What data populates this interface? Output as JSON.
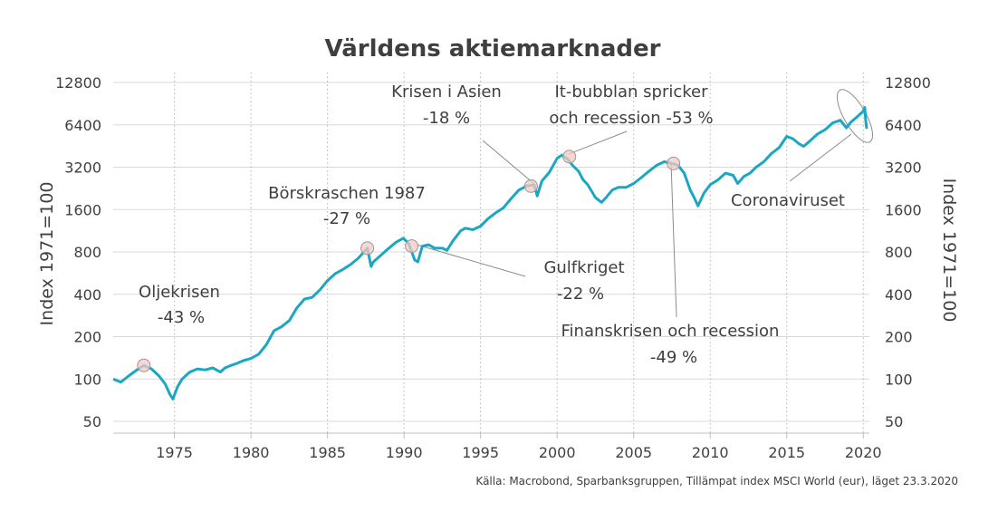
{
  "chart_data": {
    "type": "line",
    "title": "Världens aktiemarknader",
    "ylabel_left": "Index 1971=100",
    "ylabel_right": "Index 1971=100",
    "y_scale": "log2",
    "ylim": [
      40,
      12800
    ],
    "yticks": [
      50,
      100,
      200,
      400,
      800,
      1600,
      3200,
      6400,
      12800
    ],
    "xlim": [
      1971,
      2020.4
    ],
    "xticks": [
      1975,
      1980,
      1985,
      1990,
      1995,
      2000,
      2005,
      2010,
      2015,
      2020
    ],
    "grid": "horizontal solid, vertical dotted",
    "line_color": "#1aa7c3",
    "source": "Källa: Macrobond, Sparbanksgruppen, Tillämpat index MSCI World (eur), läget 23.3.2020",
    "series": [
      {
        "x": [
          1971.0,
          1971.5,
          1972.0,
          1972.5,
          1973.0,
          1973.5,
          1974.0,
          1974.4,
          1974.7,
          1974.9,
          1975.2,
          1975.5,
          1976.0,
          1976.5,
          1977.0,
          1977.5,
          1978.0,
          1978.3,
          1978.7,
          1979.0,
          1979.5,
          1980.0,
          1980.5,
          1981.0,
          1981.5,
          1982.0,
          1982.5,
          1983.0,
          1983.5,
          1984.0,
          1984.5,
          1985.0,
          1985.5,
          1986.0,
          1986.5,
          1987.0,
          1987.6,
          1987.85,
          1988.0,
          1988.5,
          1989.0,
          1989.5,
          1989.95,
          1990.3,
          1990.7,
          1990.9,
          1991.2,
          1991.6,
          1992.0,
          1992.5,
          1992.8,
          1993.2,
          1993.7,
          1994.0,
          1994.5,
          1995.0,
          1995.5,
          1996.0,
          1996.5,
          1997.0,
          1997.5,
          1998.0,
          1998.5,
          1998.7,
          1999.0,
          1999.5,
          2000.0,
          2000.3,
          2000.7,
          2001.0,
          2001.4,
          2001.7,
          2002.0,
          2002.5,
          2002.9,
          2003.2,
          2003.6,
          2004.0,
          2004.5,
          2005.0,
          2005.5,
          2006.0,
          2006.5,
          2007.0,
          2007.5,
          2007.9,
          2008.3,
          2008.7,
          2009.0,
          2009.2,
          2009.6,
          2010.0,
          2010.5,
          2011.0,
          2011.5,
          2011.8,
          2012.2,
          2012.6,
          2013.0,
          2013.5,
          2014.0,
          2014.5,
          2015.0,
          2015.4,
          2015.8,
          2016.1,
          2016.5,
          2017.0,
          2017.5,
          2018.0,
          2018.5,
          2018.9,
          2019.2,
          2019.6,
          2020.0,
          2020.1,
          2020.15,
          2020.22
        ],
        "y": [
          100,
          95,
          105,
          115,
          125,
          118,
          105,
          92,
          78,
          72,
          88,
          100,
          112,
          118,
          116,
          120,
          112,
          120,
          125,
          128,
          135,
          140,
          150,
          175,
          220,
          235,
          260,
          320,
          370,
          380,
          430,
          500,
          560,
          600,
          650,
          720,
          850,
          630,
          680,
          760,
          850,
          940,
          1000,
          920,
          700,
          680,
          880,
          900,
          850,
          850,
          820,
          960,
          1130,
          1180,
          1150,
          1220,
          1380,
          1520,
          1650,
          1920,
          2200,
          2350,
          2400,
          2000,
          2550,
          2950,
          3700,
          3900,
          3650,
          3300,
          3000,
          2600,
          2400,
          1950,
          1800,
          1950,
          2200,
          2300,
          2300,
          2450,
          2700,
          3000,
          3300,
          3500,
          3400,
          3300,
          2900,
          2200,
          1900,
          1700,
          2100,
          2400,
          2600,
          2900,
          2800,
          2450,
          2750,
          2900,
          3200,
          3500,
          4000,
          4400,
          5300,
          5100,
          4700,
          4500,
          4900,
          5500,
          5900,
          6600,
          6900,
          6100,
          6700,
          7300,
          8000,
          8500,
          7000,
          6000
        ]
      }
    ],
    "annotations": [
      {
        "lines": [
          "Oljekrisen",
          "-43 %"
        ],
        "marker_x": 1973.0,
        "marker_y": 125
      },
      {
        "lines": [
          "Börskraschen 1987",
          "-27 %"
        ],
        "marker_x": 1987.6,
        "marker_y": 850
      },
      {
        "lines": [
          "Gulfkriget",
          "-22 %"
        ],
        "marker_x": 1990.5,
        "marker_y": 880
      },
      {
        "lines": [
          "Krisen i Asien",
          "-18 %"
        ],
        "marker_x": 1998.3,
        "marker_y": 2350
      },
      {
        "lines": [
          "It-bubblan spricker",
          "och recession  -53 %"
        ],
        "marker_x": 2000.8,
        "marker_y": 3800
      },
      {
        "lines": [
          "Finanskrisen och recession",
          "-49 %"
        ],
        "marker_x": 2007.6,
        "marker_y": 3400
      },
      {
        "lines": [
          "Coronaviruset"
        ],
        "marker_x": 2020.0,
        "marker_y": 8000
      }
    ]
  }
}
